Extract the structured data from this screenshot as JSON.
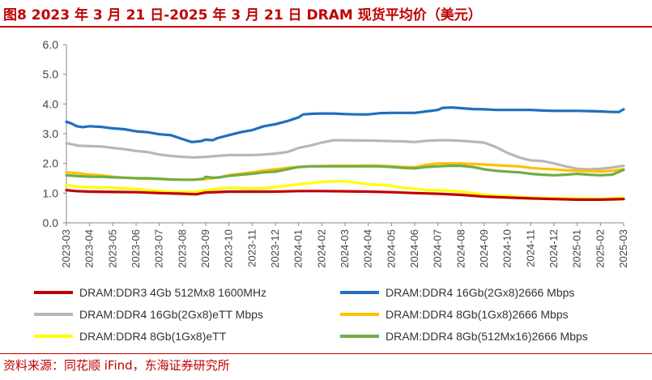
{
  "title": "图8  2023 年 3 月 21 日-2025 年 3 月 21 日 DRAM 现货平均价（美元）",
  "source": "资料来源：同花顺 iFind，东海证券研究所",
  "chart_data": {
    "type": "line",
    "ylim": [
      0,
      6
    ],
    "yticks": [
      "0.0",
      "1.0",
      "2.0",
      "3.0",
      "4.0",
      "5.0",
      "6.0"
    ],
    "xticks": [
      "2023-03",
      "2023-04",
      "2023-05",
      "2023-06",
      "2023-07",
      "2023-08",
      "2023-09",
      "2023-10",
      "2023-11",
      "2023-12",
      "2024-01",
      "2024-02",
      "2024-03",
      "2024-04",
      "2024-05",
      "2024-06",
      "2024-07",
      "2024-08",
      "2024-09",
      "2024-10",
      "2024-11",
      "2024-12",
      "2025-01",
      "2025-02",
      "2025-03"
    ],
    "legend_position": "bottom",
    "grid": false,
    "series": [
      {
        "name": "DRAM:DDR3 4Gb 512Mx8 1600MHz",
        "color": "#c00000",
        "points": [
          [
            0,
            1.1
          ],
          [
            0.4,
            1.07
          ],
          [
            1,
            1.05
          ],
          [
            2,
            1.04
          ],
          [
            3,
            1.03
          ],
          [
            4,
            1.0
          ],
          [
            5,
            0.98
          ],
          [
            5.6,
            0.96
          ],
          [
            6,
            1.02
          ],
          [
            7,
            1.05
          ],
          [
            8,
            1.05
          ],
          [
            9,
            1.05
          ],
          [
            10,
            1.07
          ],
          [
            11,
            1.07
          ],
          [
            12,
            1.06
          ],
          [
            13,
            1.05
          ],
          [
            14,
            1.03
          ],
          [
            15,
            1.0
          ],
          [
            16,
            0.98
          ],
          [
            17,
            0.94
          ],
          [
            18,
            0.88
          ],
          [
            19,
            0.85
          ],
          [
            20,
            0.82
          ],
          [
            21,
            0.8
          ],
          [
            22,
            0.78
          ],
          [
            23,
            0.78
          ],
          [
            24,
            0.8
          ]
        ]
      },
      {
        "name": "DRAM:DDR4 16Gb(2Gx8)2666 Mbps",
        "color": "#1f6fbf",
        "points": [
          [
            0,
            3.4
          ],
          [
            0.2,
            3.35
          ],
          [
            0.45,
            3.25
          ],
          [
            0.7,
            3.22
          ],
          [
            1,
            3.25
          ],
          [
            1.5,
            3.23
          ],
          [
            2,
            3.18
          ],
          [
            2.5,
            3.15
          ],
          [
            3,
            3.08
          ],
          [
            3.5,
            3.05
          ],
          [
            4,
            2.98
          ],
          [
            4.5,
            2.95
          ],
          [
            5,
            2.82
          ],
          [
            5.4,
            2.72
          ],
          [
            5.8,
            2.75
          ],
          [
            6,
            2.8
          ],
          [
            6.3,
            2.78
          ],
          [
            6.5,
            2.85
          ],
          [
            7,
            2.95
          ],
          [
            7.5,
            3.05
          ],
          [
            8,
            3.12
          ],
          [
            8.5,
            3.25
          ],
          [
            9,
            3.32
          ],
          [
            9.5,
            3.42
          ],
          [
            10,
            3.55
          ],
          [
            10.2,
            3.65
          ],
          [
            10.6,
            3.67
          ],
          [
            11,
            3.68
          ],
          [
            11.5,
            3.68
          ],
          [
            12,
            3.66
          ],
          [
            12.5,
            3.65
          ],
          [
            13,
            3.65
          ],
          [
            13.5,
            3.69
          ],
          [
            14,
            3.7
          ],
          [
            14.5,
            3.7
          ],
          [
            15,
            3.7
          ],
          [
            15.5,
            3.75
          ],
          [
            16,
            3.8
          ],
          [
            16.2,
            3.87
          ],
          [
            16.6,
            3.88
          ],
          [
            17,
            3.86
          ],
          [
            17.5,
            3.83
          ],
          [
            18,
            3.82
          ],
          [
            18.5,
            3.8
          ],
          [
            19,
            3.8
          ],
          [
            19.5,
            3.8
          ],
          [
            20,
            3.8
          ],
          [
            20.5,
            3.78
          ],
          [
            21,
            3.77
          ],
          [
            21.5,
            3.77
          ],
          [
            22,
            3.77
          ],
          [
            22.5,
            3.76
          ],
          [
            23,
            3.75
          ],
          [
            23.5,
            3.73
          ],
          [
            23.8,
            3.73
          ],
          [
            24,
            3.82
          ]
        ]
      },
      {
        "name": "DRAM:DDR4 16Gb(2Gx8)eTT Mbps",
        "color": "#b7b7b7",
        "points": [
          [
            0,
            2.68
          ],
          [
            0.5,
            2.6
          ],
          [
            1,
            2.58
          ],
          [
            1.5,
            2.57
          ],
          [
            2,
            2.52
          ],
          [
            2.5,
            2.48
          ],
          [
            3,
            2.42
          ],
          [
            3.5,
            2.38
          ],
          [
            4,
            2.3
          ],
          [
            4.5,
            2.25
          ],
          [
            5,
            2.22
          ],
          [
            5.5,
            2.2
          ],
          [
            6,
            2.22
          ],
          [
            6.5,
            2.25
          ],
          [
            7,
            2.28
          ],
          [
            7.5,
            2.28
          ],
          [
            8,
            2.28
          ],
          [
            8.5,
            2.3
          ],
          [
            9,
            2.33
          ],
          [
            9.5,
            2.38
          ],
          [
            10,
            2.52
          ],
          [
            10.5,
            2.6
          ],
          [
            11,
            2.7
          ],
          [
            11.5,
            2.78
          ],
          [
            12,
            2.78
          ],
          [
            12.5,
            2.77
          ],
          [
            13,
            2.77
          ],
          [
            13.5,
            2.76
          ],
          [
            14,
            2.75
          ],
          [
            14.5,
            2.74
          ],
          [
            15,
            2.72
          ],
          [
            15.5,
            2.76
          ],
          [
            16,
            2.78
          ],
          [
            16.5,
            2.78
          ],
          [
            17,
            2.76
          ],
          [
            17.5,
            2.73
          ],
          [
            18,
            2.7
          ],
          [
            18.5,
            2.55
          ],
          [
            19,
            2.35
          ],
          [
            19.5,
            2.2
          ],
          [
            20,
            2.1
          ],
          [
            20.5,
            2.08
          ],
          [
            21,
            2.0
          ],
          [
            21.5,
            1.9
          ],
          [
            22,
            1.82
          ],
          [
            22.5,
            1.8
          ],
          [
            23,
            1.82
          ],
          [
            23.5,
            1.86
          ],
          [
            24,
            1.92
          ]
        ]
      },
      {
        "name": "DRAM:DDR4 8Gb(1Gx8)2666 Mbps",
        "color": "#ffc000",
        "points": [
          [
            0,
            1.7
          ],
          [
            0.5,
            1.67
          ],
          [
            1,
            1.62
          ],
          [
            1.5,
            1.6
          ],
          [
            2,
            1.55
          ],
          [
            2.5,
            1.52
          ],
          [
            3,
            1.5
          ],
          [
            3.5,
            1.48
          ],
          [
            4,
            1.48
          ],
          [
            4.5,
            1.46
          ],
          [
            5,
            1.45
          ],
          [
            5.5,
            1.45
          ],
          [
            6,
            1.47
          ],
          [
            6.5,
            1.52
          ],
          [
            7,
            1.6
          ],
          [
            7.5,
            1.65
          ],
          [
            8,
            1.7
          ],
          [
            8.5,
            1.76
          ],
          [
            9,
            1.8
          ],
          [
            9.5,
            1.85
          ],
          [
            10,
            1.88
          ],
          [
            10.5,
            1.9
          ],
          [
            11,
            1.91
          ],
          [
            11.5,
            1.92
          ],
          [
            12,
            1.92
          ],
          [
            12.5,
            1.92
          ],
          [
            13,
            1.93
          ],
          [
            13.5,
            1.92
          ],
          [
            14,
            1.9
          ],
          [
            14.5,
            1.88
          ],
          [
            15,
            1.87
          ],
          [
            15.5,
            1.95
          ],
          [
            16,
            2.0
          ],
          [
            16.5,
            2.0
          ],
          [
            17,
            2.0
          ],
          [
            17.5,
            1.98
          ],
          [
            18,
            1.96
          ],
          [
            18.5,
            1.94
          ],
          [
            19,
            1.92
          ],
          [
            19.5,
            1.9
          ],
          [
            20,
            1.85
          ],
          [
            20.5,
            1.82
          ],
          [
            21,
            1.8
          ],
          [
            21.5,
            1.77
          ],
          [
            22,
            1.75
          ],
          [
            22.5,
            1.74
          ],
          [
            23,
            1.73
          ],
          [
            23.5,
            1.75
          ],
          [
            24,
            1.8
          ]
        ]
      },
      {
        "name": "DRAM:DDR4 8Gb(1Gx8)eTT",
        "color": "#ffff00",
        "points": [
          [
            0,
            1.27
          ],
          [
            0.5,
            1.22
          ],
          [
            1,
            1.2
          ],
          [
            1.5,
            1.19
          ],
          [
            2,
            1.18
          ],
          [
            2.5,
            1.16
          ],
          [
            3,
            1.14
          ],
          [
            3.5,
            1.1
          ],
          [
            4,
            1.07
          ],
          [
            4.5,
            1.05
          ],
          [
            5,
            1.04
          ],
          [
            5.5,
            1.04
          ],
          [
            6,
            1.1
          ],
          [
            6.5,
            1.15
          ],
          [
            7,
            1.18
          ],
          [
            7.5,
            1.17
          ],
          [
            8,
            1.15
          ],
          [
            8.5,
            1.17
          ],
          [
            9,
            1.2
          ],
          [
            9.5,
            1.25
          ],
          [
            10,
            1.3
          ],
          [
            10.5,
            1.33
          ],
          [
            11,
            1.38
          ],
          [
            11.5,
            1.4
          ],
          [
            12,
            1.4
          ],
          [
            12.5,
            1.35
          ],
          [
            13,
            1.3
          ],
          [
            13.5,
            1.28
          ],
          [
            14,
            1.25
          ],
          [
            14.5,
            1.18
          ],
          [
            15,
            1.15
          ],
          [
            15.5,
            1.1
          ],
          [
            16,
            1.1
          ],
          [
            16.5,
            1.08
          ],
          [
            17,
            1.05
          ],
          [
            17.5,
            1.0
          ],
          [
            18,
            0.95
          ],
          [
            18.5,
            0.92
          ],
          [
            19,
            0.9
          ],
          [
            19.5,
            0.87
          ],
          [
            20,
            0.85
          ],
          [
            20.5,
            0.84
          ],
          [
            21,
            0.83
          ],
          [
            21.5,
            0.82
          ],
          [
            22,
            0.82
          ],
          [
            22.5,
            0.81
          ],
          [
            23,
            0.81
          ],
          [
            23.5,
            0.82
          ],
          [
            24,
            0.85
          ]
        ]
      },
      {
        "name": "DRAM:DDR4 8Gb(512Mx16)2666 Mbps",
        "color": "#70ad47",
        "points": [
          [
            0,
            1.6
          ],
          [
            0.5,
            1.57
          ],
          [
            1,
            1.55
          ],
          [
            1.5,
            1.55
          ],
          [
            2,
            1.53
          ],
          [
            2.5,
            1.52
          ],
          [
            3,
            1.5
          ],
          [
            3.5,
            1.5
          ],
          [
            4,
            1.48
          ],
          [
            4.5,
            1.46
          ],
          [
            5,
            1.45
          ],
          [
            5.5,
            1.45
          ],
          [
            5.9,
            1.48
          ],
          [
            6,
            1.55
          ],
          [
            6.3,
            1.52
          ],
          [
            6.6,
            1.53
          ],
          [
            7,
            1.58
          ],
          [
            7.5,
            1.62
          ],
          [
            8,
            1.65
          ],
          [
            8.5,
            1.7
          ],
          [
            9,
            1.72
          ],
          [
            9.5,
            1.8
          ],
          [
            10,
            1.88
          ],
          [
            10.5,
            1.9
          ],
          [
            11,
            1.9
          ],
          [
            11.5,
            1.9
          ],
          [
            12,
            1.9
          ],
          [
            12.5,
            1.9
          ],
          [
            13,
            1.9
          ],
          [
            13.5,
            1.9
          ],
          [
            14,
            1.88
          ],
          [
            14.5,
            1.85
          ],
          [
            15,
            1.83
          ],
          [
            15.5,
            1.88
          ],
          [
            16,
            1.9
          ],
          [
            16.5,
            1.92
          ],
          [
            17,
            1.92
          ],
          [
            17.5,
            1.88
          ],
          [
            18,
            1.8
          ],
          [
            18.5,
            1.75
          ],
          [
            19,
            1.72
          ],
          [
            19.5,
            1.7
          ],
          [
            20,
            1.65
          ],
          [
            20.5,
            1.62
          ],
          [
            21,
            1.6
          ],
          [
            21.5,
            1.62
          ],
          [
            22,
            1.65
          ],
          [
            22.5,
            1.62
          ],
          [
            23,
            1.6
          ],
          [
            23.5,
            1.62
          ],
          [
            24,
            1.78
          ]
        ]
      }
    ]
  }
}
